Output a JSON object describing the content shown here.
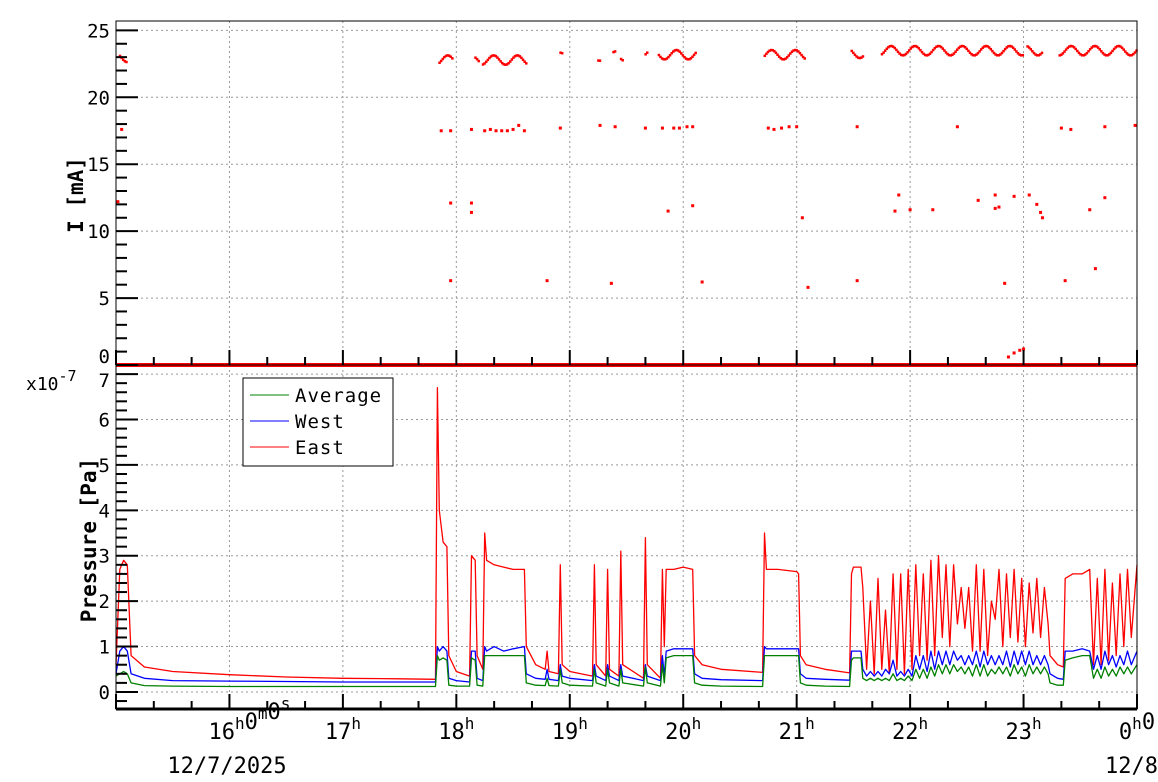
{
  "chart_data": [
    {
      "type": "scatter",
      "ylabel": "I [mA]",
      "xlim": [
        "15:00",
        "00:00"
      ],
      "ylim": [
        0,
        25.7
      ],
      "yticks": [
        "0",
        "5",
        "10",
        "15",
        "20",
        "25"
      ],
      "grid": true,
      "color": "#ff0000",
      "segments": [
        [
          "15:00",
          "00:00",
          0
        ],
        [
          "15:02",
          "15:06",
          23.0
        ],
        [
          "17:51",
          "17:58",
          22.8
        ],
        [
          "18:10",
          "18:12",
          22.7
        ],
        [
          "18:14",
          "18:37",
          22.8
        ],
        [
          "18:55",
          "18:56",
          23.0
        ],
        [
          "19:15",
          "19:16",
          23.1
        ],
        [
          "19:23",
          "19:24",
          23.1
        ],
        [
          "19:27",
          "19:28",
          23.1
        ],
        [
          "19:40",
          "19:41",
          23.1
        ],
        [
          "19:47",
          "20:07",
          23.2
        ],
        [
          "20:43",
          "21:05",
          23.2
        ],
        [
          "21:29",
          "21:35",
          23.3
        ],
        [
          "21:45",
          "23:00",
          23.5
        ],
        [
          "23:02",
          "23:10",
          23.5
        ],
        [
          "23:19",
          "00:00",
          23.5
        ]
      ],
      "points": [
        [
          "15:03",
          17.6
        ],
        [
          "15:01",
          12.2
        ],
        [
          "17:52",
          17.5
        ],
        [
          "17:57",
          17.5
        ],
        [
          "17:57",
          12.1
        ],
        [
          "17:57",
          6.3
        ],
        [
          "18:08",
          17.6
        ],
        [
          "18:08",
          12.1
        ],
        [
          "18:08",
          11.4
        ],
        [
          "18:15",
          17.5
        ],
        [
          "18:18",
          17.6
        ],
        [
          "18:21",
          17.5
        ],
        [
          "18:24",
          17.5
        ],
        [
          "18:27",
          17.5
        ],
        [
          "18:30",
          17.6
        ],
        [
          "18:33",
          17.9
        ],
        [
          "18:36",
          17.5
        ],
        [
          "18:48",
          6.3
        ],
        [
          "18:55",
          17.7
        ],
        [
          "19:16",
          17.9
        ],
        [
          "19:22",
          6.1
        ],
        [
          "19:24",
          17.8
        ],
        [
          "19:40",
          17.7
        ],
        [
          "19:49",
          17.7
        ],
        [
          "19:52",
          11.5
        ],
        [
          "19:55",
          17.7
        ],
        [
          "19:58",
          17.7
        ],
        [
          "20:02",
          17.8
        ],
        [
          "20:05",
          17.8
        ],
        [
          "20:05",
          11.9
        ],
        [
          "20:10",
          6.2
        ],
        [
          "20:45",
          17.7
        ],
        [
          "20:48",
          17.6
        ],
        [
          "20:52",
          17.7
        ],
        [
          "20:56",
          17.8
        ],
        [
          "21:00",
          17.8
        ],
        [
          "21:03",
          11.0
        ],
        [
          "21:06",
          5.8
        ],
        [
          "21:32",
          17.8
        ],
        [
          "21:32",
          6.3
        ],
        [
          "21:52",
          11.5
        ],
        [
          "21:54",
          12.7
        ],
        [
          "22:00",
          11.6
        ],
        [
          "22:12",
          11.6
        ],
        [
          "22:25",
          17.8
        ],
        [
          "22:36",
          12.3
        ],
        [
          "22:45",
          12.7
        ],
        [
          "22:45",
          11.7
        ],
        [
          "22:50",
          6.1
        ],
        [
          "22:47",
          11.8
        ],
        [
          "22:55",
          12.6
        ],
        [
          "22:52",
          0.6
        ],
        [
          "22:55",
          0.9
        ],
        [
          "22:58",
          1.1
        ],
        [
          "23:00",
          1.2
        ],
        [
          "23:03",
          12.7
        ],
        [
          "23:07",
          12.0
        ],
        [
          "23:09",
          11.4
        ],
        [
          "23:10",
          11.0
        ],
        [
          "23:20",
          17.7
        ],
        [
          "23:22",
          6.3
        ],
        [
          "23:25",
          17.6
        ],
        [
          "23:35",
          11.6
        ],
        [
          "23:38",
          7.2
        ],
        [
          "23:43",
          17.8
        ],
        [
          "23:43",
          12.5
        ],
        [
          "23:59",
          17.9
        ]
      ]
    },
    {
      "type": "line",
      "ylabel": "Pressure [Pa]",
      "y_multiplier": "x10-7",
      "xlim": [
        "15:00",
        "00:00"
      ],
      "ylim": [
        -0.375,
        7.2
      ],
      "yticks": [
        "0",
        "1",
        "2",
        "3",
        "4",
        "5",
        "6",
        "7"
      ],
      "grid": true,
      "legend_position": "top-left",
      "xtick_labels": [
        {
          "parts": [
            [
              "16",
              "h"
            ],
            [
              "0",
              "m"
            ],
            [
              "0",
              "s"
            ]
          ]
        },
        {
          "parts": [
            [
              "17",
              "h"
            ]
          ]
        },
        {
          "parts": [
            [
              "18",
              "h"
            ]
          ]
        },
        {
          "parts": [
            [
              "19",
              "h"
            ]
          ]
        },
        {
          "parts": [
            [
              "20",
              "h"
            ]
          ]
        },
        {
          "parts": [
            [
              "21",
              "h"
            ]
          ]
        },
        {
          "parts": [
            [
              "22",
              "h"
            ]
          ]
        },
        {
          "parts": [
            [
              "23",
              "h"
            ]
          ]
        },
        {
          "parts": [
            [
              "0",
              "h"
            ],
            [
              "0",
              ""
            ]
          ]
        }
      ],
      "date_labels": [
        "12/7/2025",
        "12/8"
      ],
      "series": [
        {
          "name": "Average",
          "color": "#008000"
        },
        {
          "name": "West",
          "color": "#0000ff"
        },
        {
          "name": "East",
          "color": "#ff0000"
        }
      ],
      "columns": [
        "time",
        "Average",
        "West",
        "East"
      ],
      "rows": [
        [
          "15:00",
          0.35,
          0.4,
          0.6
        ],
        [
          "15:02",
          0.4,
          0.9,
          2.7
        ],
        [
          "15:04",
          0.45,
          1.0,
          2.9
        ],
        [
          "15:06",
          0.4,
          0.9,
          2.8
        ],
        [
          "15:08",
          0.2,
          0.4,
          0.8
        ],
        [
          "15:15",
          0.14,
          0.3,
          0.55
        ],
        [
          "15:30",
          0.13,
          0.25,
          0.45
        ],
        [
          "16:00",
          0.12,
          0.24,
          0.38
        ],
        [
          "16:30",
          0.12,
          0.23,
          0.33
        ],
        [
          "17:00",
          0.12,
          0.22,
          0.3
        ],
        [
          "17:30",
          0.12,
          0.22,
          0.29
        ],
        [
          "17:49",
          0.12,
          0.22,
          0.28
        ],
        [
          "17:50",
          0.8,
          1.0,
          6.7
        ],
        [
          "17:51",
          0.7,
          0.9,
          4.0
        ],
        [
          "17:53",
          0.75,
          1.0,
          3.3
        ],
        [
          "17:55",
          0.7,
          0.9,
          3.2
        ],
        [
          "17:56",
          0.15,
          0.3,
          0.8
        ],
        [
          "18:00",
          0.13,
          0.25,
          0.45
        ],
        [
          "18:07",
          0.13,
          0.22,
          0.35
        ],
        [
          "18:08",
          0.75,
          0.9,
          3.0
        ],
        [
          "18:10",
          0.7,
          0.9,
          2.9
        ],
        [
          "18:11",
          0.15,
          0.3,
          0.8
        ],
        [
          "18:14",
          0.13,
          0.25,
          0.5
        ],
        [
          "18:15",
          0.8,
          1.0,
          3.5
        ],
        [
          "18:16",
          0.8,
          0.9,
          2.9
        ],
        [
          "18:20",
          0.8,
          1.0,
          2.8
        ],
        [
          "18:25",
          0.8,
          0.9,
          2.75
        ],
        [
          "18:30",
          0.8,
          0.95,
          2.7
        ],
        [
          "18:36",
          0.8,
          1.0,
          2.7
        ],
        [
          "18:37",
          0.2,
          0.4,
          1.0
        ],
        [
          "18:42",
          0.15,
          0.3,
          0.6
        ],
        [
          "18:47",
          0.14,
          0.28,
          0.5
        ],
        [
          "18:48",
          0.3,
          0.5,
          0.9
        ],
        [
          "18:49",
          0.14,
          0.28,
          0.45
        ],
        [
          "18:54",
          0.13,
          0.25,
          0.4
        ],
        [
          "18:55",
          0.5,
          0.6,
          2.8
        ],
        [
          "18:56",
          0.2,
          0.35,
          0.6
        ],
        [
          "19:00",
          0.15,
          0.3,
          0.45
        ],
        [
          "19:12",
          0.13,
          0.25,
          0.35
        ],
        [
          "19:13",
          0.5,
          0.6,
          2.8
        ],
        [
          "19:14",
          0.2,
          0.35,
          0.6
        ],
        [
          "19:19",
          0.13,
          0.25,
          0.35
        ],
        [
          "19:20",
          0.5,
          0.6,
          2.7
        ],
        [
          "19:21",
          0.2,
          0.35,
          0.5
        ],
        [
          "19:26",
          0.13,
          0.25,
          0.35
        ],
        [
          "19:27",
          0.5,
          0.6,
          3.1
        ],
        [
          "19:28",
          0.2,
          0.35,
          0.6
        ],
        [
          "19:39",
          0.13,
          0.25,
          0.3
        ],
        [
          "19:40",
          0.55,
          0.6,
          3.4
        ],
        [
          "19:41",
          0.2,
          0.35,
          0.6
        ],
        [
          "19:48",
          0.13,
          0.25,
          0.3
        ],
        [
          "19:49",
          0.6,
          0.8,
          2.7
        ],
        [
          "19:50",
          0.2,
          0.35,
          1.0
        ],
        [
          "19:51",
          0.75,
          0.9,
          2.7
        ],
        [
          "19:55",
          0.8,
          0.95,
          2.7
        ],
        [
          "20:00",
          0.8,
          0.95,
          2.75
        ],
        [
          "20:05",
          0.8,
          0.95,
          2.7
        ],
        [
          "20:06",
          0.2,
          0.4,
          0.8
        ],
        [
          "20:10",
          0.15,
          0.3,
          0.6
        ],
        [
          "20:20",
          0.13,
          0.27,
          0.5
        ],
        [
          "20:42",
          0.12,
          0.25,
          0.43
        ],
        [
          "20:43",
          0.8,
          1.0,
          3.5
        ],
        [
          "20:44",
          0.8,
          0.95,
          2.7
        ],
        [
          "20:50",
          0.8,
          0.95,
          2.7
        ],
        [
          "21:00",
          0.8,
          0.95,
          2.65
        ],
        [
          "21:01",
          0.8,
          0.95,
          2.6
        ],
        [
          "21:02",
          0.2,
          0.4,
          0.8
        ],
        [
          "21:05",
          0.15,
          0.3,
          0.6
        ],
        [
          "21:15",
          0.13,
          0.28,
          0.5
        ],
        [
          "21:28",
          0.12,
          0.26,
          0.42
        ],
        [
          "21:29",
          0.7,
          0.9,
          2.6
        ],
        [
          "21:30",
          0.75,
          0.9,
          2.75
        ],
        [
          "21:34",
          0.75,
          0.9,
          2.75
        ],
        [
          "21:35",
          0.3,
          0.5,
          2.3
        ],
        [
          "21:37",
          0.25,
          0.35,
          0.5
        ],
        [
          "21:39",
          0.3,
          0.45,
          2.0
        ],
        [
          "21:41",
          0.25,
          0.35,
          0.4
        ],
        [
          "21:43",
          0.3,
          0.45,
          2.5
        ],
        [
          "21:45",
          0.25,
          0.35,
          0.5
        ],
        [
          "21:47",
          0.3,
          0.5,
          1.8
        ],
        [
          "21:49",
          0.25,
          0.4,
          0.4
        ],
        [
          "21:51",
          0.4,
          0.7,
          2.6
        ],
        [
          "21:53",
          0.25,
          0.35,
          0.5
        ],
        [
          "21:55",
          0.3,
          0.45,
          2.6
        ],
        [
          "21:57",
          0.25,
          0.35,
          0.4
        ],
        [
          "21:59",
          0.35,
          0.5,
          2.7
        ],
        [
          "22:01",
          0.25,
          0.35,
          0.5
        ],
        [
          "22:03",
          0.5,
          0.8,
          2.8
        ],
        [
          "22:05",
          0.3,
          0.5,
          0.8
        ],
        [
          "22:07",
          0.5,
          0.8,
          2.6
        ],
        [
          "22:09",
          0.3,
          0.45,
          0.7
        ],
        [
          "22:11",
          0.55,
          0.9,
          2.9
        ],
        [
          "22:13",
          0.35,
          0.5,
          0.8
        ],
        [
          "22:15",
          0.6,
          0.9,
          3.0
        ],
        [
          "22:17",
          0.4,
          0.6,
          1.2
        ],
        [
          "22:19",
          0.6,
          0.9,
          2.8
        ],
        [
          "22:21",
          0.4,
          0.6,
          1.0
        ],
        [
          "22:23",
          0.6,
          0.9,
          2.8
        ],
        [
          "22:25",
          0.45,
          0.7,
          1.5
        ],
        [
          "22:27",
          0.55,
          0.8,
          2.3
        ],
        [
          "22:29",
          0.4,
          0.6,
          1.4
        ],
        [
          "22:31",
          0.55,
          0.8,
          2.3
        ],
        [
          "22:33",
          0.35,
          0.6,
          0.9
        ],
        [
          "22:35",
          0.6,
          0.9,
          2.8
        ],
        [
          "22:37",
          0.35,
          0.55,
          0.9
        ],
        [
          "22:39",
          0.6,
          0.9,
          2.7
        ],
        [
          "22:41",
          0.35,
          0.6,
          0.8
        ],
        [
          "22:43",
          0.5,
          0.8,
          2.0
        ],
        [
          "22:45",
          0.4,
          0.6,
          1.6
        ],
        [
          "22:47",
          0.55,
          0.8,
          2.7
        ],
        [
          "22:49",
          0.4,
          0.6,
          1.0
        ],
        [
          "22:51",
          0.55,
          0.9,
          2.6
        ],
        [
          "22:53",
          0.35,
          0.55,
          1.2
        ],
        [
          "22:55",
          0.6,
          0.9,
          2.7
        ],
        [
          "22:57",
          0.4,
          0.6,
          1.1
        ],
        [
          "22:59",
          0.55,
          0.9,
          2.5
        ],
        [
          "23:01",
          0.35,
          0.6,
          1.0
        ],
        [
          "23:03",
          0.6,
          0.9,
          2.4
        ],
        [
          "23:05",
          0.4,
          0.6,
          1.3
        ],
        [
          "23:07",
          0.55,
          0.8,
          2.5
        ],
        [
          "23:09",
          0.4,
          0.6,
          1.2
        ],
        [
          "23:11",
          0.55,
          0.8,
          2.3
        ],
        [
          "23:13",
          0.4,
          0.6,
          1.5
        ],
        [
          "23:14",
          0.2,
          0.4,
          0.8
        ],
        [
          "23:18",
          0.15,
          0.3,
          0.6
        ],
        [
          "23:21",
          0.15,
          0.28,
          0.55
        ],
        [
          "23:22",
          0.7,
          0.9,
          2.5
        ],
        [
          "23:26",
          0.75,
          0.9,
          2.6
        ],
        [
          "23:31",
          0.8,
          0.95,
          2.6
        ],
        [
          "23:35",
          0.8,
          0.9,
          2.7
        ],
        [
          "23:37",
          0.3,
          0.5,
          0.6
        ],
        [
          "23:39",
          0.5,
          0.8,
          2.5
        ],
        [
          "23:41",
          0.3,
          0.5,
          0.6
        ],
        [
          "23:43",
          0.55,
          0.9,
          2.7
        ],
        [
          "23:45",
          0.35,
          0.6,
          0.7
        ],
        [
          "23:47",
          0.5,
          0.8,
          2.4
        ],
        [
          "23:49",
          0.35,
          0.55,
          0.8
        ],
        [
          "23:51",
          0.55,
          0.8,
          2.6
        ],
        [
          "23:53",
          0.4,
          0.6,
          1.0
        ],
        [
          "23:55",
          0.55,
          0.9,
          2.7
        ],
        [
          "23:57",
          0.4,
          0.6,
          1.2
        ],
        [
          "00:00",
          0.6,
          0.9,
          2.8
        ]
      ]
    }
  ]
}
